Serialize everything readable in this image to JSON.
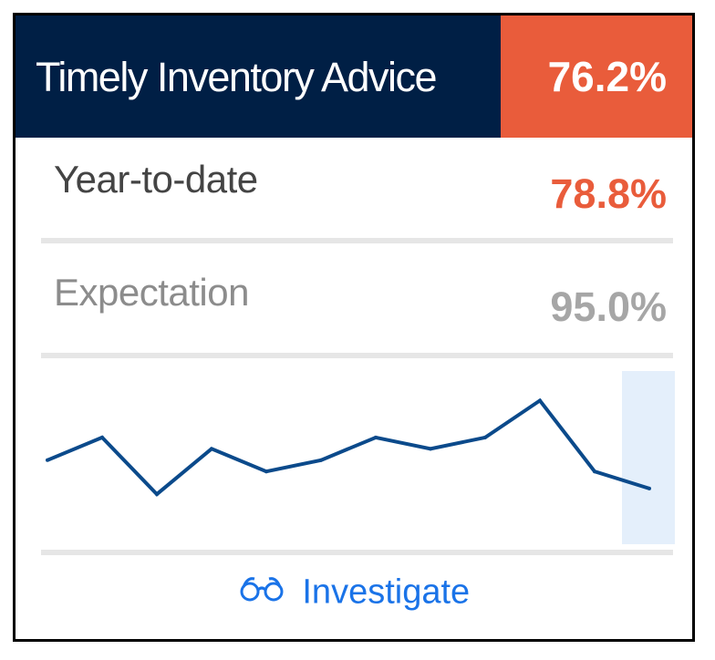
{
  "header": {
    "title": "Timely Inventory Advice",
    "value": "76.2%"
  },
  "metrics": {
    "ytd_label": "Year-to-date",
    "ytd_value": "78.8%",
    "expectation_label": "Expectation",
    "expectation_value": "95.0%"
  },
  "chart_data": {
    "type": "line",
    "values": [
      70,
      78,
      58,
      74,
      66,
      70,
      78,
      74,
      78,
      91,
      66,
      60
    ],
    "highlighted_index": 11,
    "color": "#0b4a8b",
    "highlight_color": "#e4effb"
  },
  "footer": {
    "investigate_label": "Investigate",
    "investigate_icon": "glasses-icon",
    "link_color": "#1a73e8"
  },
  "colors": {
    "header_bg": "#001f45",
    "accent": "#e95c3b",
    "muted": "#a6a6a6"
  }
}
